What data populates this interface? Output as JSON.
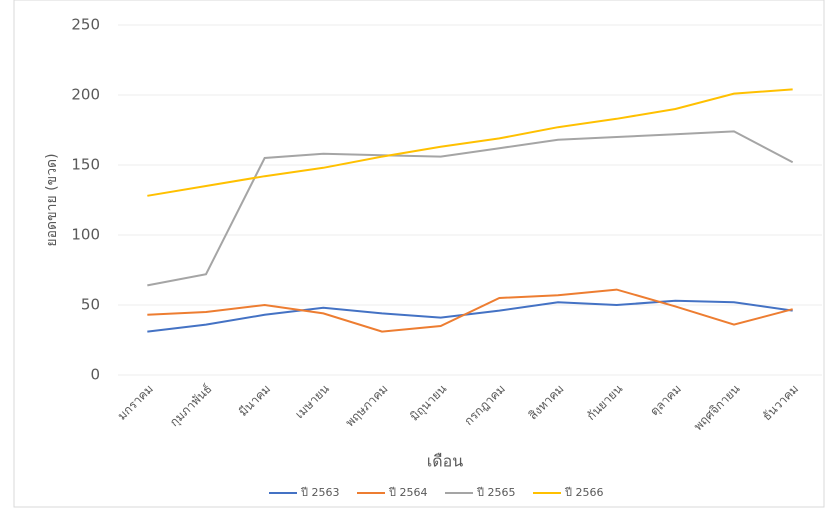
{
  "chart_data": {
    "type": "line",
    "x_label": "เดือน",
    "y_label": "ยอดขาย (ขวด)",
    "categories": [
      "มกราคม",
      "กุมภาพันธ์",
      "มีนาคม",
      "เมษายน",
      "พฤษภาคม",
      "มิถุนายน",
      "กรกฎาคม",
      "สิงหาคม",
      "กันยายน",
      "ตุลาคม",
      "พฤศจิกายน",
      "ธันวาคม"
    ],
    "series": [
      {
        "name": "ปี 2563",
        "color": "#4472c4",
        "values": [
          31,
          36,
          43,
          48,
          44,
          41,
          46,
          52,
          50,
          53,
          52,
          46
        ]
      },
      {
        "name": "ปี 2564",
        "color": "#ed7d31",
        "values": [
          43,
          45,
          50,
          44,
          31,
          35,
          55,
          57,
          61,
          49,
          36,
          47
        ]
      },
      {
        "name": "ปี 2565",
        "color": "#a5a5a5",
        "values": [
          64,
          72,
          155,
          158,
          157,
          156,
          162,
          168,
          170,
          172,
          174,
          152
        ]
      },
      {
        "name": "ปี 2566",
        "color": "#ffc000",
        "values": [
          128,
          135,
          142,
          148,
          156,
          163,
          169,
          177,
          183,
          190,
          201,
          204
        ]
      }
    ],
    "ylim": [
      0,
      250
    ],
    "yticks": [
      0,
      50,
      100,
      150,
      200,
      250
    ],
    "grid": true,
    "legend": "bottom"
  }
}
